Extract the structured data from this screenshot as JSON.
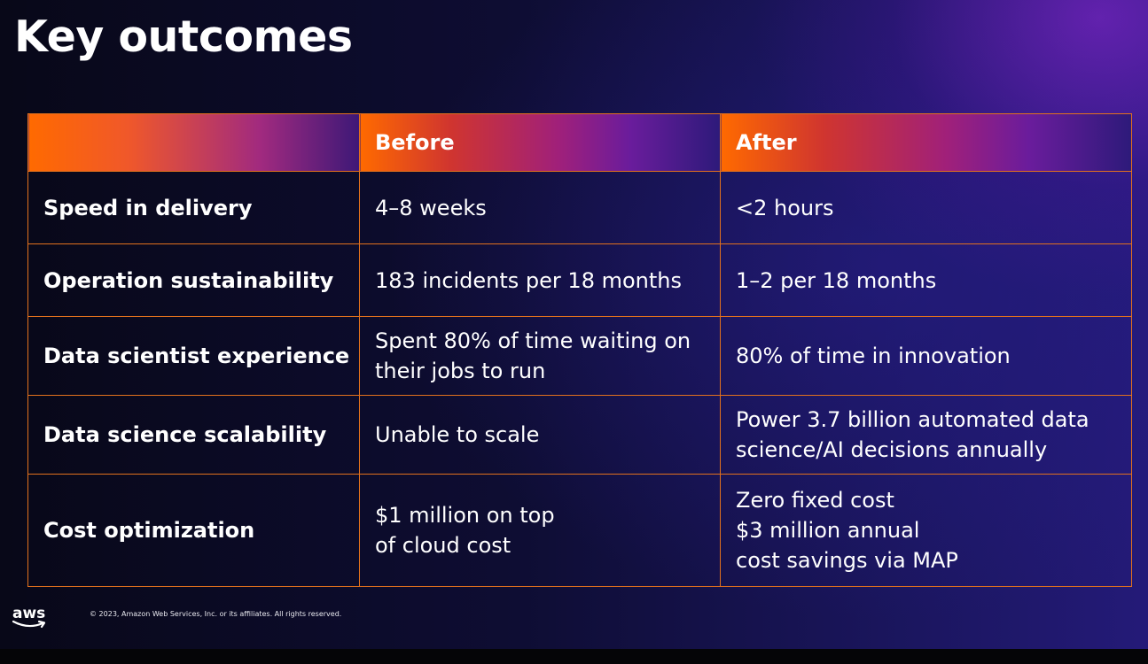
{
  "slide": {
    "title": "Key outcomes"
  },
  "table": {
    "headers": [
      "",
      "Before",
      "After"
    ],
    "rows": [
      {
        "label": "Speed in delivery",
        "before": [
          "4–8 weeks"
        ],
        "after": [
          "<2 hours"
        ]
      },
      {
        "label": "Operation sustainability",
        "before": [
          "183 incidents per 18 months"
        ],
        "after": [
          "1–2 per 18 months"
        ]
      },
      {
        "label": "Data scientist experience",
        "before": [
          "Spent 80% of time waiting on",
          "their jobs to run"
        ],
        "after": [
          "80% of time in innovation"
        ]
      },
      {
        "label": "Data science scalability",
        "before": [
          "Unable to scale"
        ],
        "after": [
          "Power 3.7 billion automated data",
          "science/AI decisions annually"
        ]
      },
      {
        "label": "Cost optimization",
        "before": [
          "$1 million on top",
          "of cloud cost"
        ],
        "after": [
          "Zero fixed cost",
          "$3 million annual",
          "cost savings via MAP"
        ]
      }
    ]
  },
  "footer": {
    "logo_text": "aws",
    "logo_icon": "aws-smile-arrow",
    "copyright": "© 2023, Amazon Web Services, Inc. or its affiliates. All rights reserved."
  },
  "colors": {
    "table_border": "#e2711d",
    "header_gradient_start": "#ff6a00",
    "header_gradient_end": "#2d1a7a",
    "background": "#0b0a2a"
  }
}
